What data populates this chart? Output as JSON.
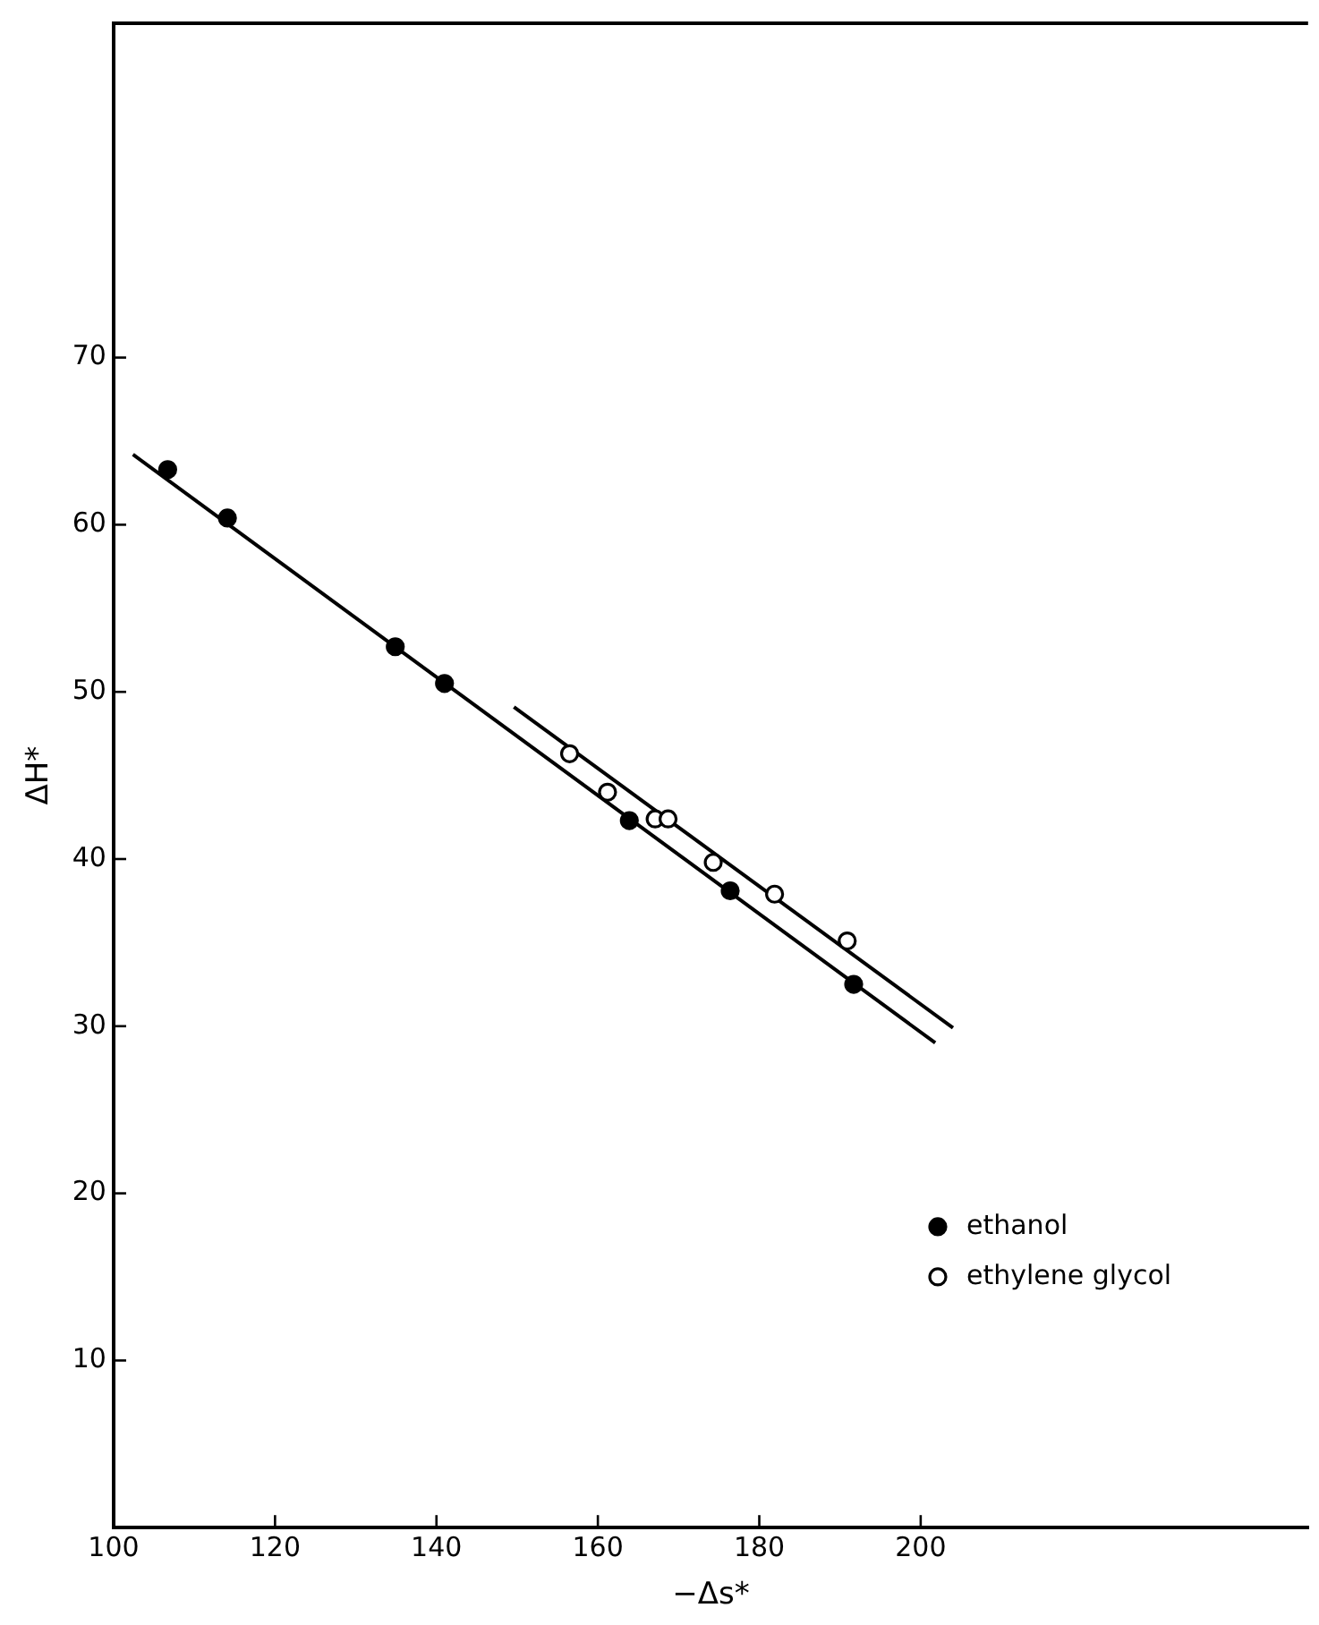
{
  "chart_data": {
    "type": "scatter",
    "xlabel": "−Δs*",
    "ylabel": "ΔH*",
    "xlim": [
      100,
      248
    ],
    "ylim": [
      0,
      90
    ],
    "xticks": [
      100,
      120,
      140,
      160,
      180,
      200
    ],
    "yticks": [
      10,
      20,
      30,
      40,
      50,
      60,
      70
    ],
    "grid": false,
    "legend": "right",
    "marker": "circle",
    "series": [
      {
        "name": "ethanol",
        "color": "#000000",
        "x": [
          106.7,
          114.1,
          134.9,
          141.0,
          163.9,
          176.4,
          191.7
        ],
        "values": [
          63.3,
          60.4,
          52.7,
          50.5,
          42.3,
          38.1,
          32.5
        ]
      },
      {
        "name": "ethylene glycol",
        "color": "#ffffff",
        "x": [
          156.5,
          161.2,
          167.1,
          168.7,
          174.3,
          181.9,
          190.9
        ],
        "values": [
          46.3,
          44.0,
          42.4,
          42.4,
          39.8,
          37.9,
          35.1
        ]
      },
      {
        "type": "line",
        "color": "#000000",
        "marker": "none",
        "line_style": "solid",
        "x": [
          102.4,
          201.8
        ],
        "values": [
          64.2,
          29.0
        ]
      },
      {
        "type": "line",
        "color": "#000000",
        "marker": "none",
        "line_style": "solid",
        "x": [
          149.6,
          204
        ],
        "values": [
          49.1,
          29.9
        ]
      }
    ]
  }
}
